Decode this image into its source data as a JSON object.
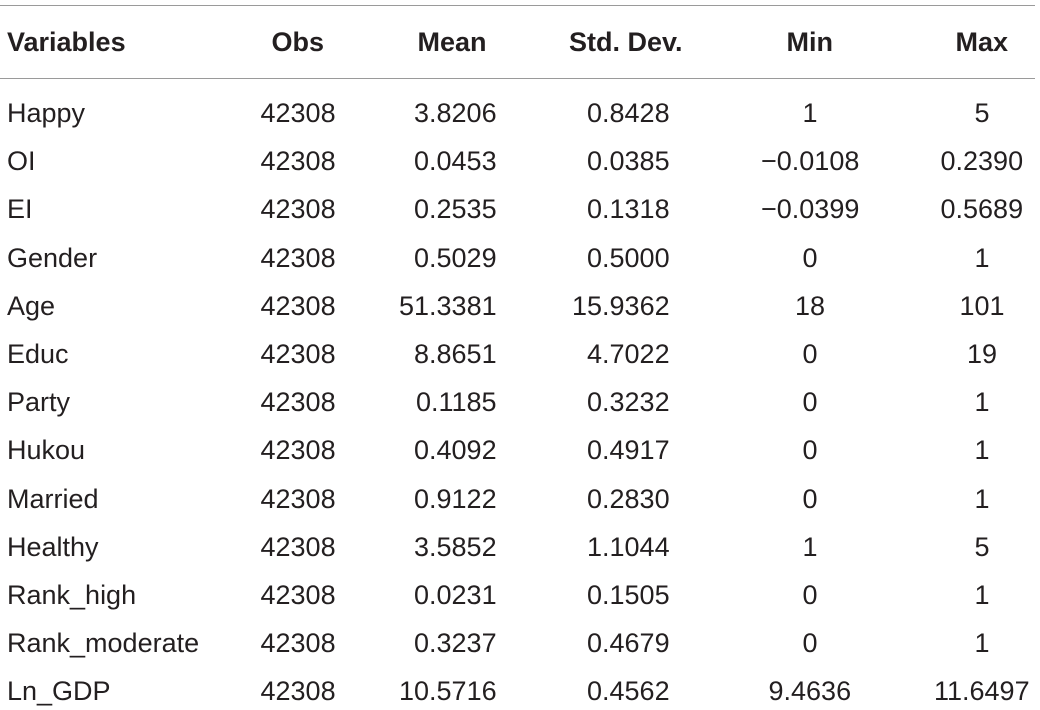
{
  "table": {
    "header": [
      "Variables",
      "Obs",
      "Mean",
      "Std. Dev.",
      "Min",
      "Max"
    ],
    "rows": [
      [
        "Happy",
        "42308",
        "3.8206",
        "0.8428",
        "1",
        "5"
      ],
      [
        "OI",
        "42308",
        "0.0453",
        "0.0385",
        "−0.0108",
        "0.2390"
      ],
      [
        "EI",
        "42308",
        "0.2535",
        "0.1318",
        "−0.0399",
        "0.5689"
      ],
      [
        "Gender",
        "42308",
        "0.5029",
        "0.5000",
        "0",
        "1"
      ],
      [
        "Age",
        "42308",
        "51.3381",
        "15.9362",
        "18",
        "101"
      ],
      [
        "Educ",
        "42308",
        "8.8651",
        "4.7022",
        "0",
        "19"
      ],
      [
        "Party",
        "42308",
        "0.1185",
        "0.3232",
        "0",
        "1"
      ],
      [
        "Hukou",
        "42308",
        "0.4092",
        "0.4917",
        "0",
        "1"
      ],
      [
        "Married",
        "42308",
        "0.9122",
        "0.2830",
        "0",
        "1"
      ],
      [
        "Healthy",
        "42308",
        "3.5852",
        "1.1044",
        "1",
        "5"
      ],
      [
        "Rank_high",
        "42308",
        "0.0231",
        "0.1505",
        "0",
        "1"
      ],
      [
        "Rank_moderate",
        "42308",
        "0.3237",
        "0.4679",
        "0",
        "1"
      ],
      [
        "Ln_GDP",
        "42308",
        "10.5716",
        "0.4562",
        "9.4636",
        "11.6497"
      ]
    ]
  }
}
